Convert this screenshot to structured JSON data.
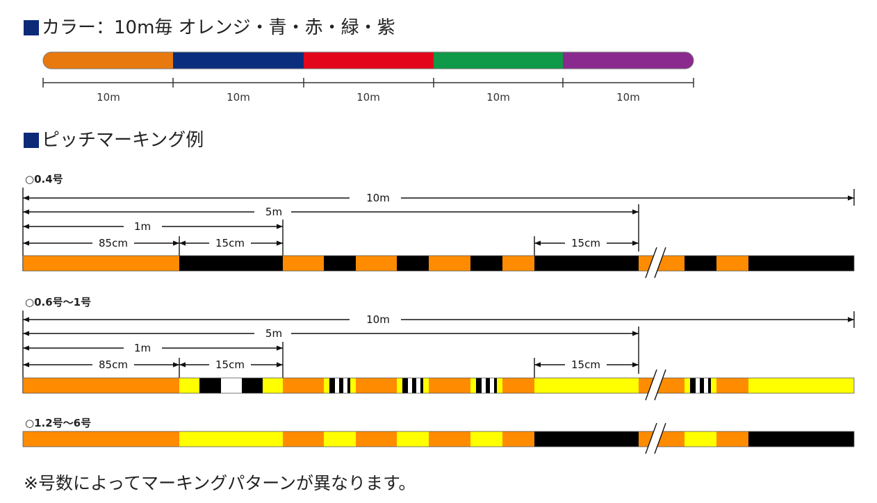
{
  "color_section": {
    "heading": "カラー：10m毎 オレンジ・青・赤・緑・紫",
    "segments": [
      {
        "color": "#e8790f",
        "label": "10m"
      },
      {
        "color": "#0b2d7e",
        "label": "10m"
      },
      {
        "color": "#e3061a",
        "label": "10m"
      },
      {
        "color": "#0e9a48",
        "label": "10m"
      },
      {
        "color": "#8b2a8e",
        "label": "10m"
      }
    ]
  },
  "pitch_section": {
    "heading": "ピッチマーキング例",
    "dim_labels": {
      "ten_m": "10m",
      "five_m": "5m",
      "one_m": "1m",
      "eighty_five_cm": "85cm",
      "fifteen_cm": "15cm"
    },
    "variants": [
      {
        "label": "○0.4号",
        "has_dimensions": true,
        "mark_color": "#000000"
      },
      {
        "label": "○0.6号～1号",
        "has_dimensions": true,
        "mark_color": "#ffff00"
      },
      {
        "label": "○1.2号～6号",
        "has_dimensions": false,
        "mark_color": "#ffff00"
      }
    ],
    "colors": {
      "orange": "#ff8c00",
      "black": "#000000",
      "yellow": "#ffff00",
      "white": "#ffffff"
    }
  },
  "note": "※号数によってマーキングパターンが異なります。"
}
